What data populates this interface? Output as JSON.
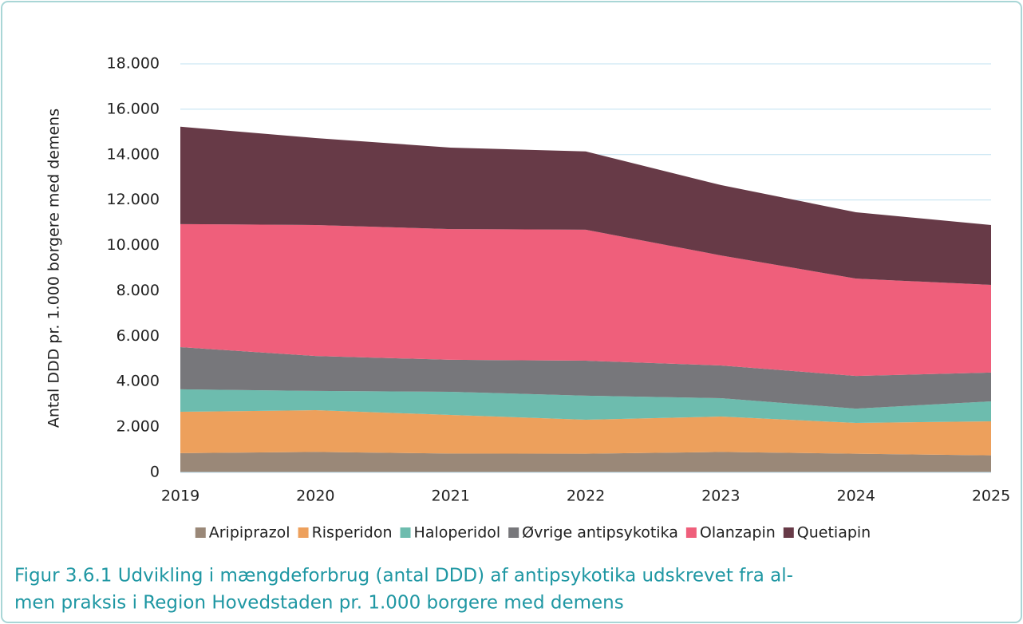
{
  "chart_data": {
    "type": "stacked-area",
    "y_label": "Antal DDD pr. 1.000 borgere med demens",
    "categories": [
      "2019",
      "2020",
      "2021",
      "2022",
      "2023",
      "2024",
      "2025"
    ],
    "series": [
      {
        "name": "Aripiprazol",
        "color": "#9a8878",
        "values": [
          850,
          900,
          830,
          820,
          900,
          820,
          750
        ]
      },
      {
        "name": "Risperidon",
        "color": "#eda05c",
        "values": [
          1820,
          1840,
          1700,
          1500,
          1560,
          1360,
          1500
        ]
      },
      {
        "name": "Haloperidol",
        "color": "#6dbcae",
        "values": [
          990,
          850,
          1020,
          1060,
          810,
          630,
          880
        ]
      },
      {
        "name": "Øvrige antipsykotika",
        "color": "#77777b",
        "values": [
          1860,
          1540,
          1410,
          1540,
          1440,
          1440,
          1270
        ]
      },
      {
        "name": "Olanzapin",
        "color": "#ef5f7b",
        "values": [
          5420,
          5770,
          5760,
          5770,
          4850,
          4290,
          3860
        ]
      },
      {
        "name": "Quetiapin",
        "color": "#673a47",
        "values": [
          4290,
          3830,
          3590,
          3450,
          3100,
          2920,
          2640
        ]
      }
    ],
    "ylim": [
      0,
      18000
    ],
    "yticks": [
      0,
      {
        "value": 2000,
        "label": "2.000"
      },
      {
        "value": 4000,
        "label": "4.000"
      },
      {
        "value": 6000,
        "label": "6.000"
      },
      {
        "value": 8000,
        "label": "8.000"
      },
      {
        "value": 10000,
        "label": "10.000"
      },
      {
        "value": 12000,
        "label": "12.000"
      },
      {
        "value": 14000,
        "label": "14.000"
      },
      {
        "value": 16000,
        "label": "16.000"
      },
      {
        "value": 18000,
        "label": "18.000"
      }
    ],
    "grid": true,
    "legend": "bottom",
    "caption": [
      "Figur 3.6.1 Udvikling i mængdeforbrug (antal DDD) af antipsykotika udskrevet fra al-",
      "men praksis i Region Hovedstaden pr. 1.000 borgere med demens"
    ]
  }
}
